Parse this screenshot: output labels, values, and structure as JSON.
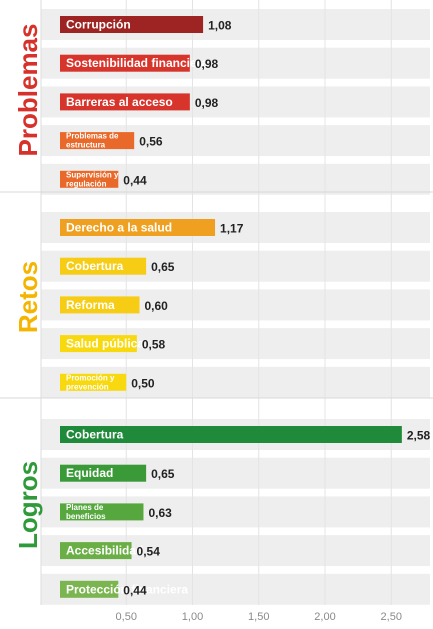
{
  "chart_data": {
    "type": "bar",
    "orientation": "horizontal",
    "xlim": [
      0,
      2.75
    ],
    "x_ticks": [
      "0,50",
      "1,00",
      "1,50",
      "2,00",
      "2,50"
    ],
    "x_tick_values": [
      0.5,
      1.0,
      1.5,
      2.0,
      2.5
    ],
    "groups": [
      {
        "name": "Problemas",
        "color": "#d6312a",
        "bars": [
          {
            "label": "Corrupción",
            "value": 1.08,
            "value_label": "1,08",
            "color": "#9e2424"
          },
          {
            "label": "Sostenibilidad financiera",
            "value": 0.98,
            "value_label": "0,98",
            "color": "#d7352c"
          },
          {
            "label": "Barreras al acceso",
            "value": 0.98,
            "value_label": "0,98",
            "color": "#d7352c"
          },
          {
            "label": "Problemas de estructura",
            "value": 0.56,
            "value_label": "0,56",
            "color": "#e8692a"
          },
          {
            "label": "Supervisión y regulación",
            "value": 0.44,
            "value_label": "0,44",
            "color": "#e8692a"
          }
        ]
      },
      {
        "name": "Retos",
        "color": "#f5b400",
        "bars": [
          {
            "label": "Derecho a la salud",
            "value": 1.17,
            "value_label": "1,17",
            "color": "#f0a020"
          },
          {
            "label": "Cobertura",
            "value": 0.65,
            "value_label": "0,65",
            "color": "#f6cc14"
          },
          {
            "label": "Reforma",
            "value": 0.6,
            "value_label": "0,60",
            "color": "#f6cc14"
          },
          {
            "label": "Salud pública",
            "value": 0.58,
            "value_label": "0,58",
            "color": "#f8d90f"
          },
          {
            "label": "Promoción y prevención",
            "value": 0.5,
            "value_label": "0,50",
            "color": "#f8d90f"
          }
        ]
      },
      {
        "name": "Logros",
        "color": "#2f9a3a",
        "bars": [
          {
            "label": "Cobertura",
            "value": 2.58,
            "value_label": "2,58",
            "color": "#1e8a3a"
          },
          {
            "label": "Equidad",
            "value": 0.65,
            "value_label": "0,65",
            "color": "#3a9a38"
          },
          {
            "label": "Planes de beneficios",
            "value": 0.63,
            "value_label": "0,63",
            "color": "#56a83e"
          },
          {
            "label": "Accesibilidad",
            "value": 0.54,
            "value_label": "0,54",
            "color": "#6aaf45"
          },
          {
            "label": "Protección financiera",
            "value": 0.44,
            "value_label": "0,44",
            "color": "#7bb54f"
          }
        ]
      }
    ],
    "grid": false,
    "track_color": "#eeeeee"
  }
}
